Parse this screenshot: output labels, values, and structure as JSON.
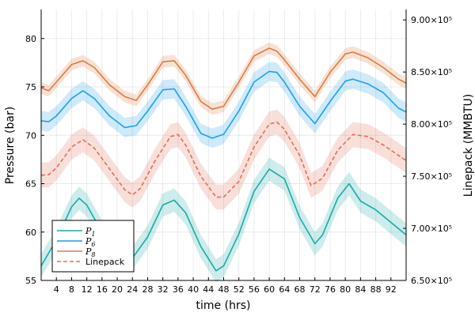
{
  "chart_data": {
    "type": "line",
    "xlabel": "time (hrs)",
    "ylabel": "Pressure (bar)",
    "y2label": "Linepack (MMBTU)",
    "xlim": [
      0,
      96
    ],
    "ylim": [
      55,
      83
    ],
    "y2lim": [
      650000,
      910000
    ],
    "x_ticks": [
      4,
      8,
      12,
      16,
      20,
      24,
      28,
      32,
      36,
      40,
      44,
      48,
      52,
      56,
      60,
      64,
      68,
      72,
      76,
      80,
      84,
      88,
      92
    ],
    "y_ticks": [
      55,
      60,
      65,
      70,
      75,
      80
    ],
    "y2_ticks": [
      {
        "value": 650000,
        "label": "6.50×10⁵"
      },
      {
        "value": 700000,
        "label": "7.00×10⁵"
      },
      {
        "value": 750000,
        "label": "7.50×10⁵"
      },
      {
        "value": 800000,
        "label": "8.00×10⁵"
      },
      {
        "value": 850000,
        "label": "8.50×10⁵"
      },
      {
        "value": 900000,
        "label": "9.00×10⁵"
      }
    ],
    "grid": true,
    "legend_position": "bottom-left",
    "series": [
      {
        "name": "P1",
        "axis": "left",
        "color": "#1aaaa6",
        "band": 1.2,
        "x": [
          0,
          4,
          8,
          10,
          12,
          16,
          20,
          24,
          28,
          32,
          35,
          38,
          42,
          46,
          48,
          52,
          56,
          60,
          64,
          68,
          72,
          74,
          78,
          81,
          84,
          88,
          92,
          96
        ],
        "values": [
          56.5,
          59.2,
          62.6,
          63.5,
          62.8,
          60.0,
          57.5,
          57.3,
          59.5,
          62.8,
          63.3,
          62.0,
          58.5,
          56.0,
          56.5,
          59.8,
          64.2,
          66.5,
          65.5,
          61.5,
          58.8,
          59.7,
          63.5,
          65.0,
          63.2,
          62.3,
          61.0,
          59.7
        ]
      },
      {
        "name": "P6",
        "axis": "left",
        "color": "#1e9fef",
        "band": 1.0,
        "x": [
          0,
          2,
          4,
          8,
          11,
          14,
          18,
          22,
          25,
          28,
          32,
          35,
          38,
          42,
          45,
          48,
          52,
          56,
          60,
          62,
          64,
          68,
          72,
          76,
          80,
          82,
          86,
          90,
          94,
          96
        ],
        "values": [
          71.5,
          71.4,
          72.0,
          73.8,
          74.6,
          73.8,
          72.0,
          70.8,
          71.0,
          72.5,
          74.7,
          74.8,
          73.0,
          70.2,
          69.7,
          70.1,
          72.5,
          75.5,
          76.6,
          76.5,
          75.5,
          73.0,
          71.2,
          73.5,
          75.6,
          75.8,
          75.3,
          74.4,
          72.8,
          72.4
        ]
      },
      {
        "name": "P8",
        "axis": "left",
        "color": "#e07a41",
        "band": 0.6,
        "x": [
          0,
          2,
          4,
          8,
          11,
          14,
          18,
          22,
          25,
          28,
          32,
          35,
          38,
          42,
          45,
          48,
          52,
          56,
          60,
          62,
          64,
          68,
          72,
          76,
          80,
          82,
          86,
          90,
          94,
          96
        ],
        "values": [
          74.9,
          74.6,
          75.5,
          77.3,
          77.7,
          77.0,
          75.2,
          74.0,
          73.6,
          75.2,
          77.6,
          77.7,
          76.2,
          73.5,
          72.7,
          73.0,
          75.5,
          78.2,
          79.0,
          78.7,
          77.8,
          75.8,
          74.0,
          76.5,
          78.4,
          78.6,
          78.0,
          77.0,
          75.8,
          75.4
        ]
      },
      {
        "name": "Linepack",
        "axis": "right",
        "color": "#e56e55",
        "dashed": true,
        "band": 12000,
        "x": [
          0,
          2,
          4,
          8,
          11,
          14,
          18,
          22,
          24,
          26,
          30,
          34,
          36,
          38,
          42,
          46,
          48,
          52,
          56,
          60,
          62,
          64,
          68,
          71,
          74,
          78,
          82,
          86,
          90,
          94,
          96
        ],
        "values": [
          751000,
          751500,
          758000,
          778000,
          785000,
          777000,
          757000,
          737000,
          732000,
          738000,
          765000,
          788000,
          790000,
          780000,
          750000,
          730000,
          730000,
          745000,
          778000,
          800000,
          802000,
          795000,
          770000,
          741000,
          748000,
          775000,
          790000,
          788000,
          780000,
          770000,
          765000
        ]
      }
    ]
  }
}
